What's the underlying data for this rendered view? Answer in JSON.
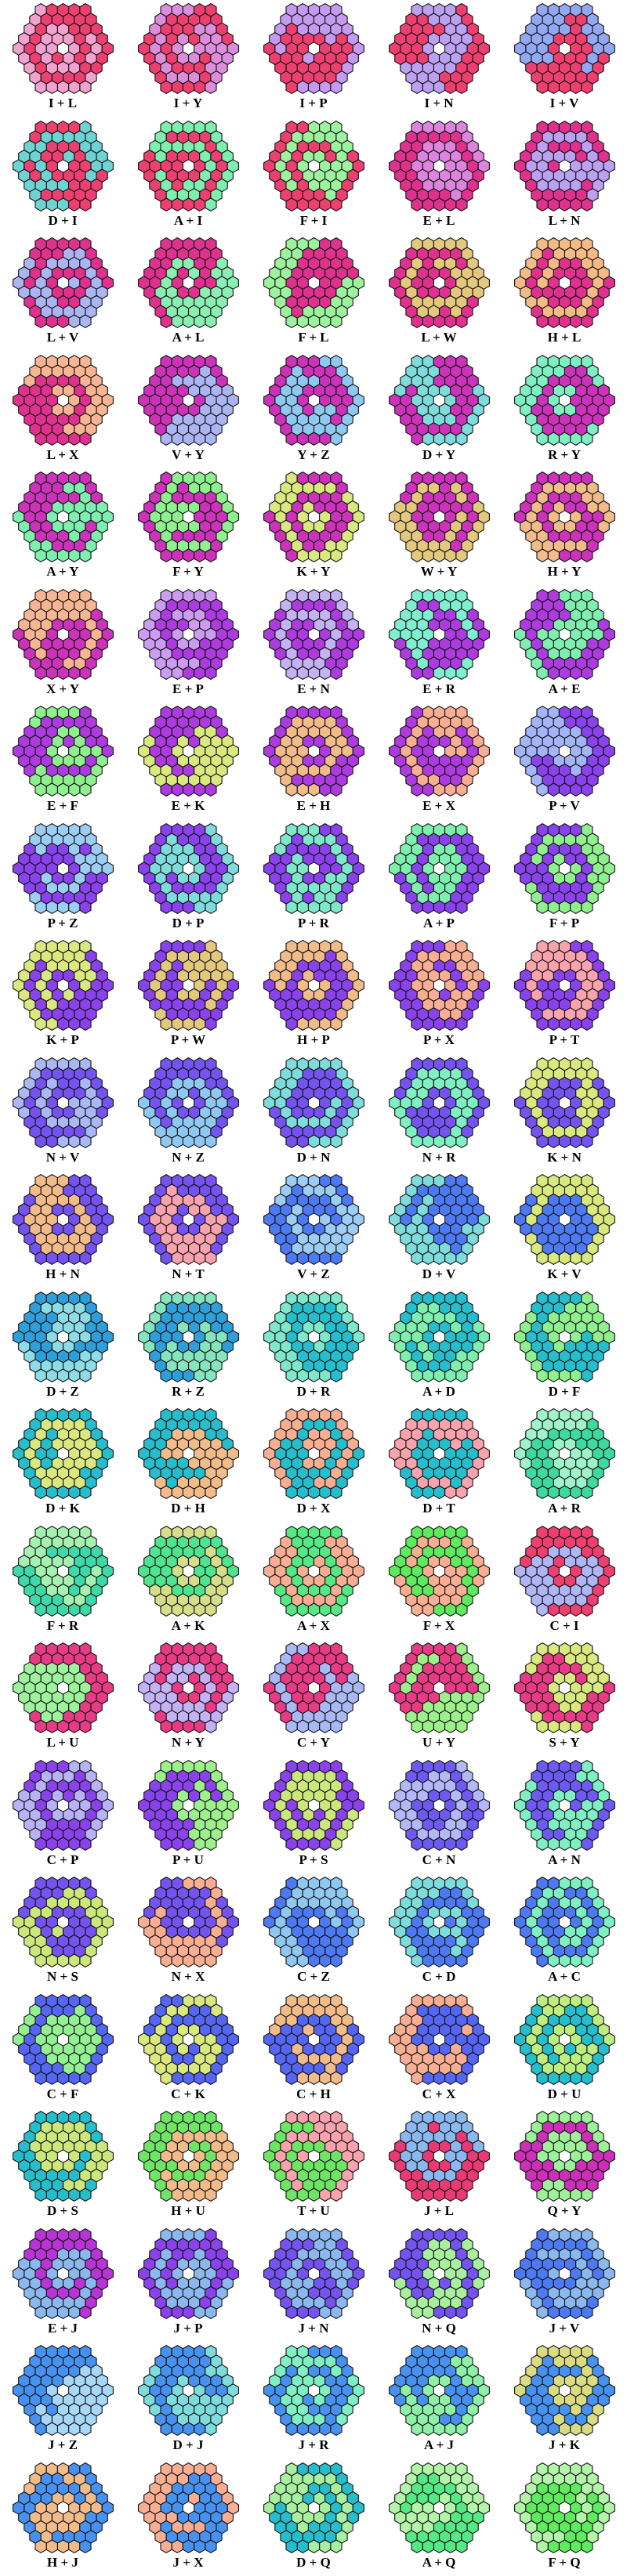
{
  "page": {
    "background": "#FFFFFF",
    "columns": 5,
    "rows": 22
  },
  "board": {
    "shape": "hexagon-of-hexagons",
    "rings": 4,
    "cell_count": 60,
    "hole": "center",
    "hole_color": "#FFFFFF",
    "outline_color": "#111111"
  },
  "tiles": [
    {
      "label": "I + L",
      "colors": [
        "#EE4070",
        "#F2A2CE"
      ]
    },
    {
      "label": "I + Y",
      "colors": [
        "#EE4070",
        "#DC8EDC"
      ]
    },
    {
      "label": "I + P",
      "colors": [
        "#EE4070",
        "#C49BF0"
      ]
    },
    {
      "label": "I + N",
      "colors": [
        "#EE4070",
        "#BCA0F2"
      ]
    },
    {
      "label": "I + V",
      "colors": [
        "#EE4070",
        "#93A8F2"
      ]
    },
    {
      "label": "D + I",
      "colors": [
        "#EE4070",
        "#6ED3D3"
      ]
    },
    {
      "label": "A + I",
      "colors": [
        "#EE4070",
        "#7FEFAF"
      ]
    },
    {
      "label": "F + I",
      "colors": [
        "#9DF29D",
        "#EE4070"
      ]
    },
    {
      "label": "E + L",
      "colors": [
        "#E0318F",
        "#DD84DD"
      ]
    },
    {
      "label": "L + N",
      "colors": [
        "#E0318F",
        "#BCA0F2"
      ]
    },
    {
      "label": "L + V",
      "colors": [
        "#E0318F",
        "#AAB5F2"
      ]
    },
    {
      "label": "A + L",
      "colors": [
        "#E0318F",
        "#8BEFB3"
      ]
    },
    {
      "label": "F + L",
      "colors": [
        "#E0318F",
        "#9DF29D"
      ]
    },
    {
      "label": "L + W",
      "colors": [
        "#E0318F",
        "#E3C87E"
      ]
    },
    {
      "label": "H + L",
      "colors": [
        "#E0318F",
        "#F5BB87"
      ]
    },
    {
      "label": "L + X",
      "colors": [
        "#E0318F",
        "#F8B593"
      ]
    },
    {
      "label": "V + Y",
      "colors": [
        "#CC32BA",
        "#AAB5F2"
      ]
    },
    {
      "label": "Y + Z",
      "colors": [
        "#CC32BA",
        "#8FC9F2"
      ]
    },
    {
      "label": "D + Y",
      "colors": [
        "#CC32BA",
        "#7FDCDC"
      ]
    },
    {
      "label": "R + Y",
      "colors": [
        "#CC32BA",
        "#7FEFC4"
      ]
    },
    {
      "label": "A + Y",
      "colors": [
        "#CC32BA",
        "#7FEFB0"
      ]
    },
    {
      "label": "F + Y",
      "colors": [
        "#CC32BA",
        "#90F090"
      ]
    },
    {
      "label": "K + Y",
      "colors": [
        "#CC32BA",
        "#D9E87F"
      ]
    },
    {
      "label": "W + Y",
      "colors": [
        "#CC32BA",
        "#E3C87E"
      ]
    },
    {
      "label": "H + Y",
      "colors": [
        "#CC32BA",
        "#F2BB8A"
      ]
    },
    {
      "label": "X + Y",
      "colors": [
        "#CC32BA",
        "#F8B593"
      ]
    },
    {
      "label": "E + P",
      "colors": [
        "#AD3BE0",
        "#CC9BF2"
      ]
    },
    {
      "label": "E + N",
      "colors": [
        "#AD3BE0",
        "#C4B2F5"
      ]
    },
    {
      "label": "E + R",
      "colors": [
        "#AD3BE0",
        "#7FEFD0"
      ]
    },
    {
      "label": "A + E",
      "colors": [
        "#AD3BE0",
        "#7FEFB0"
      ]
    },
    {
      "label": "E + F",
      "colors": [
        "#AD3BE0",
        "#90F090"
      ]
    },
    {
      "label": "E + K",
      "colors": [
        "#AD3BE0",
        "#D9E87F"
      ]
    },
    {
      "label": "E + H",
      "colors": [
        "#AD3BE0",
        "#F2BB8A"
      ]
    },
    {
      "label": "E + X",
      "colors": [
        "#AD3BE0",
        "#F8AE93"
      ]
    },
    {
      "label": "P + V",
      "colors": [
        "#8A42EC",
        "#A3B5F8"
      ]
    },
    {
      "label": "P + Z",
      "colors": [
        "#8A42EC",
        "#9CCDF5"
      ]
    },
    {
      "label": "D + P",
      "colors": [
        "#8A42EC",
        "#7FDCDC"
      ]
    },
    {
      "label": "P + R",
      "colors": [
        "#8A42EC",
        "#7FE8CC"
      ]
    },
    {
      "label": "A + P",
      "colors": [
        "#8A42EC",
        "#7FEFB0"
      ]
    },
    {
      "label": "F + P",
      "colors": [
        "#8A42EC",
        "#90F090"
      ]
    },
    {
      "label": "K + P",
      "colors": [
        "#8A42EC",
        "#D9E87F"
      ]
    },
    {
      "label": "P + W",
      "colors": [
        "#8A42EC",
        "#E3C87E"
      ]
    },
    {
      "label": "H + P",
      "colors": [
        "#8A42EC",
        "#F2BB8A"
      ]
    },
    {
      "label": "P + X",
      "colors": [
        "#8A42EC",
        "#F8AE93"
      ]
    },
    {
      "label": "P + T",
      "colors": [
        "#8A42EC",
        "#F8A3AD"
      ]
    },
    {
      "label": "N + V",
      "colors": [
        "#7553F0",
        "#AAB8F5"
      ]
    },
    {
      "label": "N + Z",
      "colors": [
        "#7553F0",
        "#8FC9F2"
      ]
    },
    {
      "label": "D + N",
      "colors": [
        "#7553F0",
        "#7FDCDC"
      ]
    },
    {
      "label": "N + R",
      "colors": [
        "#7553F0",
        "#7FEFC4"
      ]
    },
    {
      "label": "K + N",
      "colors": [
        "#7553F0",
        "#D9E87F"
      ]
    },
    {
      "label": "H + N",
      "colors": [
        "#7553F0",
        "#F2BB8A"
      ]
    },
    {
      "label": "N + T",
      "colors": [
        "#7553F0",
        "#F8A3AD"
      ]
    },
    {
      "label": "V + Z",
      "colors": [
        "#4D79F2",
        "#9CCDF5"
      ]
    },
    {
      "label": "D + V",
      "colors": [
        "#4D79F2",
        "#7FDCDC"
      ]
    },
    {
      "label": "K + V",
      "colors": [
        "#4D79F2",
        "#D9E87F"
      ]
    },
    {
      "label": "D + Z",
      "colors": [
        "#2E9FD9",
        "#8EDCE6"
      ]
    },
    {
      "label": "R + Z",
      "colors": [
        "#2E9FD9",
        "#85E5BE"
      ]
    },
    {
      "label": "D + R",
      "colors": [
        "#26BECC",
        "#7FE8CC"
      ]
    },
    {
      "label": "A + D",
      "colors": [
        "#26BECC",
        "#7FEFB0"
      ]
    },
    {
      "label": "D + F",
      "colors": [
        "#26BECC",
        "#90F090"
      ]
    },
    {
      "label": "D + K",
      "colors": [
        "#26BECC",
        "#D9E87F"
      ]
    },
    {
      "label": "D + H",
      "colors": [
        "#26BECC",
        "#F2BB8A"
      ]
    },
    {
      "label": "D + X",
      "colors": [
        "#26BECC",
        "#F8AE93"
      ]
    },
    {
      "label": "D + T",
      "colors": [
        "#26BECC",
        "#F8A3AD"
      ]
    },
    {
      "label": "A + R",
      "colors": [
        "#3FD9A0",
        "#9FF2C9"
      ]
    },
    {
      "label": "F + R",
      "colors": [
        "#3ED9A8",
        "#A5F2B0"
      ]
    },
    {
      "label": "A + K",
      "colors": [
        "#4FE48F",
        "#D6DE8A"
      ]
    },
    {
      "label": "A + X",
      "colors": [
        "#55E885",
        "#F8AE93"
      ]
    },
    {
      "label": "F + X",
      "colors": [
        "#5FEA5F",
        "#F8AE93"
      ]
    },
    {
      "label": "C + I",
      "colors": [
        "#AFB5F5",
        "#EE4070"
      ]
    },
    {
      "label": "L + U",
      "colors": [
        "#E83B85",
        "#9DF29D"
      ]
    },
    {
      "label": "N + Y",
      "colors": [
        "#E83B85",
        "#C4B2F5"
      ]
    },
    {
      "label": "C + Y",
      "colors": [
        "#E83B85",
        "#AAB8F5"
      ]
    },
    {
      "label": "U + Y",
      "colors": [
        "#E83B85",
        "#9EF08C"
      ]
    },
    {
      "label": "S + Y",
      "colors": [
        "#E83B85",
        "#D9E87F"
      ]
    },
    {
      "label": "C + P",
      "colors": [
        "#8A42EC",
        "#B8B2F8"
      ]
    },
    {
      "label": "P + U",
      "colors": [
        "#8A42EC",
        "#9EF08C"
      ]
    },
    {
      "label": "P + S",
      "colors": [
        "#8A42EC",
        "#CCE87C"
      ]
    },
    {
      "label": "C + N",
      "colors": [
        "#6E5AF2",
        "#B2B8F8"
      ]
    },
    {
      "label": "A + N",
      "colors": [
        "#6E5AF2",
        "#7FEFC4"
      ]
    },
    {
      "label": "N + S",
      "colors": [
        "#7553F0",
        "#CCE87C"
      ]
    },
    {
      "label": "N + X",
      "colors": [
        "#7553F0",
        "#F8AE93"
      ]
    },
    {
      "label": "C + Z",
      "colors": [
        "#4D79F2",
        "#8FC9F2"
      ]
    },
    {
      "label": "C + D",
      "colors": [
        "#4D79F2",
        "#7FDCDC"
      ]
    },
    {
      "label": "A + C",
      "colors": [
        "#4D79F2",
        "#7FEFC4"
      ]
    },
    {
      "label": "C + F",
      "colors": [
        "#5566F2",
        "#93F093"
      ]
    },
    {
      "label": "C + K",
      "colors": [
        "#5566F2",
        "#D9E87F"
      ]
    },
    {
      "label": "C + H",
      "colors": [
        "#5566F2",
        "#F2BB8A"
      ]
    },
    {
      "label": "C + X",
      "colors": [
        "#5566F2",
        "#F8AE93"
      ]
    },
    {
      "label": "D + U",
      "colors": [
        "#26BECC",
        "#BDEE7F"
      ]
    },
    {
      "label": "D + S",
      "colors": [
        "#26BECC",
        "#CCE87C"
      ]
    },
    {
      "label": "H + U",
      "colors": [
        "#6FE566",
        "#F2BB8A"
      ]
    },
    {
      "label": "T + U",
      "colors": [
        "#6FE566",
        "#F8A3AD"
      ]
    },
    {
      "label": "J + L",
      "colors": [
        "#EA3A76",
        "#8CB8F0"
      ]
    },
    {
      "label": "Q + Y",
      "colors": [
        "#CC2FB8",
        "#9EF09A"
      ]
    },
    {
      "label": "E + J",
      "colors": [
        "#B834D6",
        "#8CB8F0"
      ]
    },
    {
      "label": "J + P",
      "colors": [
        "#8A42EC",
        "#8CB8F0"
      ]
    },
    {
      "label": "J + N",
      "colors": [
        "#7553F0",
        "#8CB8F0"
      ]
    },
    {
      "label": "N + Q",
      "colors": [
        "#7553F0",
        "#A8F0A0"
      ]
    },
    {
      "label": "J + V",
      "colors": [
        "#4D79F2",
        "#8CB8F0"
      ]
    },
    {
      "label": "J + Z",
      "colors": [
        "#4792F0",
        "#A8D8F8"
      ]
    },
    {
      "label": "D + J",
      "colors": [
        "#4792F0",
        "#7FDCDC"
      ]
    },
    {
      "label": "J + R",
      "colors": [
        "#4792F0",
        "#7FEFC4"
      ]
    },
    {
      "label": "A + J",
      "colors": [
        "#4792F0",
        "#8FF0A8"
      ]
    },
    {
      "label": "J + K",
      "colors": [
        "#4792F0",
        "#D9DC82"
      ]
    },
    {
      "label": "H + J",
      "colors": [
        "#4792F0",
        "#F2BB8A"
      ]
    },
    {
      "label": "J + X",
      "colors": [
        "#4792F0",
        "#F8AE93"
      ]
    },
    {
      "label": "D + Q",
      "colors": [
        "#26BECC",
        "#A8F0A0"
      ]
    },
    {
      "label": "A + Q",
      "colors": [
        "#55E885",
        "#B2F5A8"
      ]
    },
    {
      "label": "F + Q",
      "colors": [
        "#5FEA5F",
        "#B2F5A8"
      ]
    }
  ]
}
